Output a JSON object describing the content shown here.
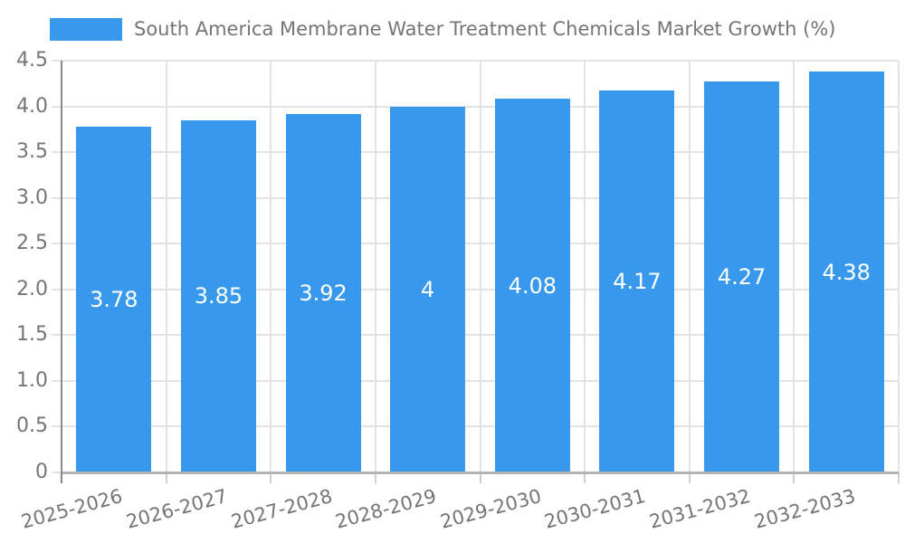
{
  "legend": {
    "label": "South America Membrane Water Treatment Chemicals Market Growth (%)"
  },
  "chart_data": {
    "type": "bar",
    "title": "South America Membrane Water Treatment Chemicals Market Growth (%)",
    "categories": [
      "2025-2026",
      "2026-2027",
      "2027-2028",
      "2028-2029",
      "2029-2030",
      "2030-2031",
      "2031-2032",
      "2032-2033"
    ],
    "values": [
      3.78,
      3.85,
      3.92,
      4,
      4.08,
      4.17,
      4.27,
      4.38
    ],
    "display_values": [
      "3.78",
      "3.85",
      "3.92",
      "4",
      "4.08",
      "4.17",
      "4.27",
      "4.38"
    ],
    "xlabel": "",
    "ylabel": "",
    "ylim": [
      0,
      4.5
    ],
    "ytick_step": 0.5,
    "ytick_labels": [
      "0",
      "0.5",
      "1.0",
      "1.5",
      "2.0",
      "2.5",
      "3.0",
      "3.5",
      "4.0",
      "4.5"
    ],
    "grid": true,
    "legend_position": "top-left",
    "value_labels": "inside-center",
    "xtick_label_rotation_deg": -15,
    "colors": {
      "bar": "#3899EC",
      "bar_value_text": "#ffffff",
      "axis_text": "#757575",
      "legend_text": "#757575",
      "gridline": "#e3e3e3",
      "baseline": "#b3b3b3",
      "axis_line": "#8a8a8a",
      "tick": "#cfcfcf",
      "background": "#ffffff"
    }
  }
}
